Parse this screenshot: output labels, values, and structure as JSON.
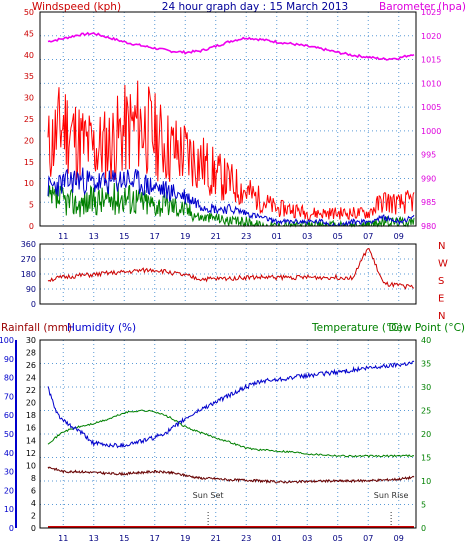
{
  "chart_data": [
    {
      "type": "line",
      "title": "24 hour graph day : 15 March 2013",
      "left_axis_label": "Windspeed (kph)",
      "right_axis_label": "Barometer (hpa)",
      "x_ticks": [
        "11",
        "13",
        "15",
        "17",
        "19",
        "21",
        "23",
        "01",
        "03",
        "05",
        "07",
        "09"
      ],
      "ylim_left": [
        0,
        50
      ],
      "yticks_left": [
        "0",
        "5",
        "10",
        "15",
        "20",
        "25",
        "30",
        "35",
        "40",
        "45",
        "50"
      ],
      "ylim_right": [
        980,
        1025
      ],
      "yticks_right": [
        "980",
        "985",
        "990",
        "995",
        "1000",
        "1005",
        "1010",
        "1015",
        "1020",
        "1025"
      ],
      "grid": "dotted",
      "colors": {
        "gust": "#ff0000",
        "average": "#0000cc",
        "direction_avg": "#008000",
        "barometer": "#ee00ee",
        "left_axis": "#cc0000",
        "right_axis": "#dd00dd"
      },
      "series": [
        {
          "role": "barometer",
          "x": [
            0,
            1,
            2,
            3,
            4,
            5,
            6,
            7,
            8,
            9,
            10,
            11,
            12,
            13,
            14,
            15,
            16,
            17,
            18,
            19,
            20,
            21,
            22,
            23,
            24
          ],
          "values": [
            1018.8,
            1019.4,
            1020.2,
            1020.5,
            1019.6,
            1018.7,
            1018.0,
            1017.4,
            1016.8,
            1016.5,
            1016.8,
            1017.8,
            1018.9,
            1019.6,
            1019.2,
            1018.7,
            1018.3,
            1017.8,
            1017.2,
            1016.5,
            1015.9,
            1015.5,
            1015.1,
            1015.3,
            1016.2
          ]
        },
        {
          "role": "gust",
          "x": [
            0,
            1,
            2,
            3,
            4,
            5,
            6,
            7,
            8,
            9,
            10,
            11,
            12,
            13,
            14,
            15,
            16,
            17,
            18,
            19,
            20,
            21,
            22,
            23,
            24
          ],
          "values": [
            18,
            24,
            20,
            18,
            19,
            22,
            24,
            21,
            18,
            17,
            15,
            12,
            10,
            8,
            6,
            4,
            4,
            3,
            3,
            3,
            3,
            3,
            6,
            5,
            6
          ]
        },
        {
          "role": "average",
          "x": [
            0,
            1,
            2,
            3,
            4,
            5,
            6,
            7,
            8,
            9,
            10,
            11,
            12,
            13,
            14,
            15,
            16,
            17,
            18,
            19,
            20,
            21,
            22,
            23,
            24
          ],
          "values": [
            9,
            10,
            11,
            10,
            10,
            11,
            10,
            9,
            8,
            7,
            5,
            4,
            4,
            3,
            2,
            1,
            1,
            1,
            1,
            0,
            1,
            1,
            2,
            1,
            2
          ]
        },
        {
          "role": "direction_avg",
          "x": [
            0,
            1,
            2,
            3,
            4,
            5,
            6,
            7,
            8,
            9,
            10,
            11,
            12,
            13,
            14,
            15,
            16,
            17,
            18,
            19,
            20,
            21,
            22,
            23,
            24
          ],
          "values": [
            6,
            6,
            5,
            6,
            6,
            7,
            6,
            5,
            5,
            4,
            2,
            2,
            1,
            1,
            0,
            0,
            0,
            0,
            0,
            0,
            0,
            0,
            1,
            1,
            1
          ]
        }
      ]
    },
    {
      "type": "line",
      "title": "",
      "yticks_left": [
        "0",
        "90",
        "180",
        "270",
        "360"
      ],
      "ylim": [
        0,
        360
      ],
      "compass_labels": [
        "N",
        "W",
        "S",
        "E",
        "N"
      ],
      "colors": {
        "direction": "#cc0000"
      },
      "series": [
        {
          "role": "wind-direction",
          "x": [
            0,
            1,
            2,
            3,
            4,
            5,
            6,
            7,
            8,
            9,
            10,
            11,
            12,
            13,
            14,
            15,
            16,
            17,
            18,
            19,
            20,
            21,
            22,
            23,
            24
          ],
          "values": [
            145,
            160,
            170,
            175,
            185,
            190,
            200,
            205,
            190,
            170,
            150,
            150,
            155,
            160,
            160,
            160,
            160,
            160,
            160,
            160,
            160,
            340,
            120,
            110,
            100
          ]
        }
      ]
    },
    {
      "type": "line",
      "title": "",
      "rainfall_label": "Rainfall (mm)",
      "humidity_label": "Humidity (%)",
      "temperature_label": "Temperature (°C)",
      "dewpoint_label": "Dew Point (°C)",
      "x_ticks": [
        "11",
        "13",
        "15",
        "17",
        "19",
        "21",
        "23",
        "01",
        "03",
        "05",
        "07",
        "09"
      ],
      "yticks_humidity": [
        "0",
        "10",
        "20",
        "30",
        "40",
        "50",
        "60",
        "70",
        "80",
        "90",
        "100"
      ],
      "yticks_rain": [
        "0",
        "2",
        "4",
        "6",
        "8",
        "10",
        "12",
        "14",
        "16",
        "18",
        "20",
        "22",
        "24",
        "26",
        "28",
        "30"
      ],
      "yticks_temp": [
        "0",
        "5",
        "10",
        "15",
        "20",
        "25",
        "30",
        "35",
        "40"
      ],
      "ylim_humidity": [
        0,
        100
      ],
      "ylim_temp": [
        0,
        40
      ],
      "annotations": [
        {
          "label": "Sun Set",
          "x": 10.5
        },
        {
          "label": "Sun Rise",
          "x": 22.5
        }
      ],
      "colors": {
        "humidity": "#0000cc",
        "temperature": "#008000",
        "dewpoint": "#660000",
        "rain": "#cc0000",
        "humidity_axis": "#0000cc",
        "temp_axis": "#008000"
      },
      "series": [
        {
          "role": "humidity",
          "x": [
            0,
            0.5,
            1,
            1.5,
            2,
            3,
            4,
            5,
            5.5,
            6,
            7,
            8,
            9,
            10,
            11,
            12,
            13,
            14,
            15,
            16,
            17,
            18,
            19,
            20,
            21,
            22,
            23,
            24
          ],
          "values": [
            75,
            62,
            57,
            54,
            52,
            45,
            44,
            44,
            45,
            46,
            48,
            52,
            58,
            63,
            67,
            71,
            75,
            78,
            79,
            80,
            81,
            82,
            83,
            84,
            85,
            86,
            87,
            88
          ]
        },
        {
          "role": "temperature",
          "x": [
            0,
            1,
            2,
            3,
            4,
            5,
            6,
            7,
            8,
            9,
            10,
            11,
            12,
            13,
            14,
            15,
            16,
            17,
            18,
            19,
            20,
            21,
            22,
            23,
            24
          ],
          "values": [
            18,
            20.5,
            21.5,
            22.2,
            23.2,
            24.5,
            25,
            24.8,
            23.5,
            21.5,
            20.3,
            19.2,
            18.2,
            17,
            16.6,
            16.4,
            16.2,
            15.8,
            15.6,
            15.4,
            15.3,
            15.3,
            15.3,
            15.4,
            15.4
          ]
        },
        {
          "role": "dewpoint",
          "x": [
            0,
            1,
            2,
            3,
            4,
            5,
            6,
            7,
            8,
            9,
            10,
            11,
            12,
            13,
            14,
            15,
            16,
            17,
            18,
            19,
            20,
            21,
            22,
            23,
            24
          ],
          "values": [
            13,
            12,
            12,
            11.8,
            11.6,
            11.5,
            11.8,
            12,
            11.8,
            11.2,
            10.6,
            10.5,
            10.2,
            10.2,
            10,
            9.8,
            9.8,
            9.9,
            10,
            10,
            10,
            10.1,
            10.2,
            10.4,
            10.8
          ]
        },
        {
          "role": "rainfall",
          "x": [
            0,
            24
          ],
          "values": [
            0,
            0
          ]
        }
      ]
    }
  ]
}
